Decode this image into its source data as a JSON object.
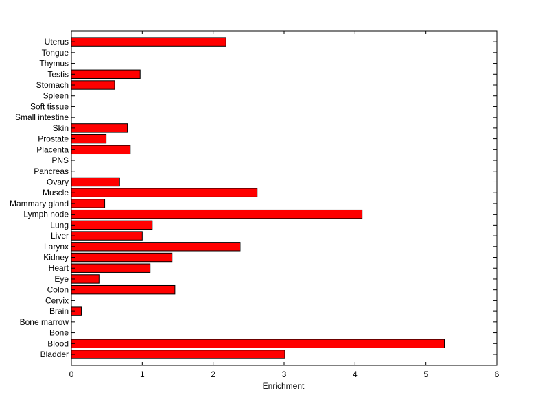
{
  "chart_data": {
    "type": "bar",
    "orientation": "horizontal",
    "title": "",
    "xlabel": "Enrichment",
    "ylabel": "",
    "xlim": [
      0,
      6
    ],
    "xticks": [
      "0",
      "1",
      "2",
      "3",
      "4",
      "5",
      "6"
    ],
    "grid": false,
    "bar_color": "#ff0000",
    "bar_edge_color": "#000000",
    "categories": [
      "Bladder",
      "Blood",
      "Bone",
      "Bone marrow",
      "Brain",
      "Cervix",
      "Colon",
      "Eye",
      "Heart",
      "Kidney",
      "Larynx",
      "Liver",
      "Lung",
      "Lymph node",
      "Mammary gland",
      "Muscle",
      "Ovary",
      "Pancreas",
      "PNS",
      "Placenta",
      "Prostate",
      "Skin",
      "Small intestine",
      "Soft tissue",
      "Spleen",
      "Stomach",
      "Testis",
      "Thymus",
      "Tongue",
      "Uterus"
    ],
    "values": [
      3.01,
      5.26,
      0,
      0,
      0.14,
      0,
      1.46,
      0.39,
      1.11,
      1.42,
      2.38,
      1.0,
      1.14,
      4.1,
      0.47,
      2.62,
      0.68,
      0,
      0,
      0.83,
      0.49,
      0.79,
      0,
      0,
      0,
      0.61,
      0.97,
      0,
      0,
      2.18
    ]
  }
}
